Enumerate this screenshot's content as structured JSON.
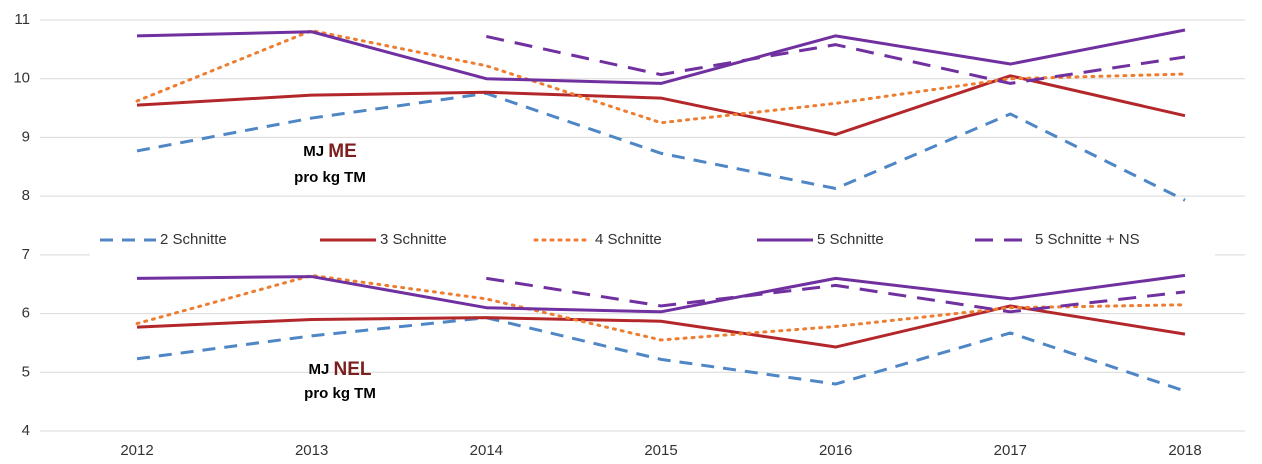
{
  "chart_data": {
    "type": "line",
    "categories": [
      "2012",
      "2013",
      "2014",
      "2015",
      "2016",
      "2017",
      "2018"
    ],
    "ylim": [
      4,
      11
    ],
    "yticks": [
      4,
      5,
      6,
      7,
      8,
      9,
      10,
      11
    ],
    "grid": true,
    "groups": [
      "ME",
      "NEL"
    ],
    "annotations": [
      {
        "unit": "MJ",
        "measure": "ME",
        "basis": "pro kg TM"
      },
      {
        "unit": "MJ",
        "measure": "NEL",
        "basis": "pro kg TM"
      }
    ],
    "series": [
      {
        "name": "2 Schnitte",
        "color": "#4f86c6",
        "style": "dashed",
        "values": {
          "ME": [
            8.77,
            9.33,
            9.75,
            8.73,
            8.13,
            9.4,
            7.93
          ],
          "NEL": [
            5.23,
            5.62,
            5.93,
            5.22,
            4.8,
            5.67,
            4.68
          ]
        }
      },
      {
        "name": "3 Schnitte",
        "color": "#b3272b",
        "style": "solid",
        "values": {
          "ME": [
            9.55,
            9.72,
            9.77,
            9.67,
            9.05,
            10.05,
            9.37
          ],
          "NEL": [
            5.77,
            5.9,
            5.93,
            5.87,
            5.43,
            6.13,
            5.65
          ]
        }
      },
      {
        "name": "4 Schnitte",
        "color": "#ed7d31",
        "style": "dotted",
        "values": {
          "ME": [
            9.62,
            10.82,
            10.22,
            9.25,
            9.58,
            10.0,
            10.08
          ],
          "NEL": [
            5.83,
            6.65,
            6.25,
            5.55,
            5.78,
            6.1,
            6.15
          ]
        }
      },
      {
        "name": "5 Schnitte",
        "color": "#7030a0",
        "style": "solid",
        "values": {
          "ME": [
            10.73,
            10.8,
            10.0,
            9.92,
            10.73,
            10.25,
            10.83
          ],
          "NEL": [
            6.6,
            6.63,
            6.1,
            6.03,
            6.6,
            6.25,
            6.65
          ]
        }
      },
      {
        "name": "5 Schnitte + NS",
        "color": "#7030a0",
        "style": "longdash",
        "values": {
          "ME": [
            null,
            null,
            10.72,
            10.07,
            10.58,
            9.92,
            10.37
          ],
          "NEL": [
            null,
            null,
            6.6,
            6.13,
            6.48,
            6.03,
            6.37
          ]
        }
      }
    ]
  }
}
